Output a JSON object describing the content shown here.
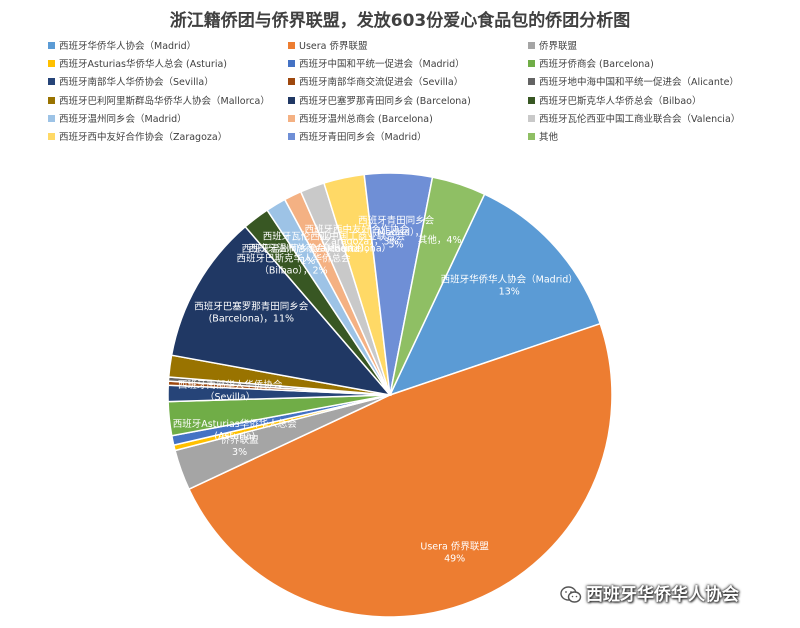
{
  "chart_data": {
    "type": "pie",
    "title": "浙江籍侨团与侨界联盟，发放603份爱心食品包的侨团分析图",
    "slices": [
      {
        "label": "西班牙华侨华人协会（Madrid）",
        "value": 13,
        "display": "西班牙华侨华人协会（Madrid）\n13%",
        "color": "#5B9BD5"
      },
      {
        "label": "Usera 侨界联盟",
        "value": 49,
        "display": "Usera 侨界联盟\n49%",
        "color": "#ED7D31"
      },
      {
        "label": "侨界联盟",
        "value": 3,
        "display": "侨界联盟\n3%",
        "color": "#A5A5A5"
      },
      {
        "label": "西班牙Asturias华侨华人总会 (Asturia)",
        "value": 0.4,
        "display": "西班牙Asturias华侨华人总会\n(Asturia)",
        "color": "#FFC000"
      },
      {
        "label": "西班牙中国和平统一促进会（Madrid）",
        "value": 0.7,
        "display": "",
        "color": "#4472C4"
      },
      {
        "label": "西班牙侨商会 (Barcelona)",
        "value": 2.5,
        "display": "",
        "color": "#70AD47"
      },
      {
        "label": "西班牙南部华人华侨协会（Sevilla）",
        "value": 1.2,
        "display": "西班牙南部华人华侨协会\n（Sevilla）",
        "color": "#264478"
      },
      {
        "label": "西班牙南部华商交流促进会（Sevilla）",
        "value": 0.3,
        "display": "",
        "color": "#9E480E"
      },
      {
        "label": "西班牙地中海中国和平统一促进会（Alicante）",
        "value": 0.3,
        "display": "",
        "color": "#636363"
      },
      {
        "label": "西班牙巴利阿里斯群岛华侨华人协会（Mallorca）",
        "value": 1.6,
        "display": "",
        "color": "#997300"
      },
      {
        "label": "西班牙巴塞罗那青田同乡会 (Barcelona)",
        "value": 11,
        "display": "西班牙巴塞罗那青田同乡会\n(Barcelona)，11%",
        "color": "#203864"
      },
      {
        "label": "西班牙巴斯克华人华侨总会（Bilbao）",
        "value": 2,
        "display": "西班牙巴斯克华人华侨总会\n（Bilbao），2%",
        "color": "#385723"
      },
      {
        "label": "西班牙温州同乡会（Madrid）",
        "value": 1.5,
        "display": "西班牙温州同乡会（Madrid），\n1%",
        "color": "#9DC3E6"
      },
      {
        "label": "西班牙温州总商会 (Barcelona)",
        "value": 1.3,
        "display": "西班牙温州总商会（Barcelona）",
        "color": "#F4B183"
      },
      {
        "label": "西班牙瓦伦西亚中国工商业联合会（Valencia）",
        "value": 1.8,
        "display": "西班牙瓦伦西亚中国工商业联合会\n（Valencia）",
        "color": "#C9C9C9"
      },
      {
        "label": "西班牙西中友好合作协会（Zaragoza）",
        "value": 3,
        "display": "西班牙西中友好合作协会\n（Zaragoza），3%",
        "color": "#FFD966"
      },
      {
        "label": "西班牙青田同乡会（Madrid）",
        "value": 5,
        "display": "西班牙青田同乡会\n（Madrid），\n5%",
        "color": "#6F8FD6"
      },
      {
        "label": "其他",
        "value": 4,
        "display": "其他，4%",
        "color": "#8FBF64"
      }
    ],
    "legend_position": "top"
  },
  "watermark": {
    "text": "西班牙华侨华人协会",
    "icon": "wechat-icon"
  }
}
